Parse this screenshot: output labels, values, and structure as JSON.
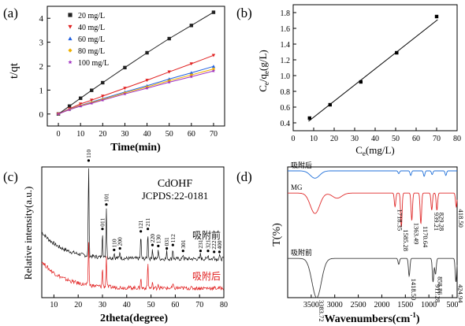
{
  "chart_data": [
    {
      "panel": "(a)",
      "type": "scatter",
      "xlabel": "Time(min)",
      "ylabel": "t/qt",
      "xlim": [
        -5,
        75
      ],
      "ylim": [
        -0.5,
        4.5
      ],
      "xticks": [
        0,
        10,
        20,
        30,
        40,
        50,
        60,
        70
      ],
      "yticks": [
        0,
        1,
        2,
        3,
        4
      ],
      "legend_position": "top-left",
      "grid": false,
      "series": [
        {
          "name": "20 mg/L",
          "color": "#222222",
          "marker": "square",
          "x": [
            0,
            5,
            10,
            15,
            20,
            30,
            40,
            50,
            60,
            70
          ],
          "y": [
            0.0,
            0.33,
            0.66,
            0.99,
            1.31,
            1.94,
            2.56,
            3.15,
            3.7,
            4.25
          ]
        },
        {
          "name": "40 mg/L",
          "color": "#e02020",
          "marker": "triangle-down",
          "x": [
            0,
            5,
            10,
            15,
            20,
            30,
            40,
            50,
            60,
            70
          ],
          "y": [
            0.0,
            0.22,
            0.42,
            0.58,
            0.75,
            1.08,
            1.41,
            1.76,
            2.1,
            2.45
          ]
        },
        {
          "name": "60 mg/L",
          "color": "#2060e0",
          "marker": "triangle-up",
          "x": [
            0,
            5,
            10,
            15,
            20,
            30,
            40,
            50,
            60,
            70
          ],
          "y": [
            0.0,
            0.2,
            0.36,
            0.5,
            0.64,
            0.92,
            1.18,
            1.46,
            1.72,
            1.99
          ]
        },
        {
          "name": "80 mg/L",
          "color": "#f0b000",
          "marker": "diamond",
          "x": [
            0,
            5,
            10,
            15,
            20,
            30,
            40,
            50,
            60,
            70
          ],
          "y": [
            0.0,
            0.19,
            0.35,
            0.48,
            0.61,
            0.88,
            1.13,
            1.39,
            1.63,
            1.88
          ]
        },
        {
          "name": "100 mg/L",
          "color": "#a030c0",
          "marker": "star",
          "x": [
            0,
            5,
            10,
            15,
            20,
            30,
            40,
            50,
            60,
            70
          ],
          "y": [
            0.0,
            0.18,
            0.33,
            0.45,
            0.58,
            0.84,
            1.08,
            1.33,
            1.56,
            1.8
          ]
        }
      ]
    },
    {
      "panel": "(b)",
      "type": "scatter",
      "xlabel_main": "C",
      "xlabel_sub": "e",
      "xlabel_tail": "(mg/L)",
      "ylabel_parts": [
        "C",
        "e",
        "/q",
        "e",
        "(g/L)"
      ],
      "xlim": [
        0,
        80
      ],
      "ylim": [
        0.3,
        1.9
      ],
      "xticks": [
        0,
        10,
        20,
        30,
        40,
        50,
        60,
        70,
        80
      ],
      "yticks": [
        0.4,
        0.6,
        0.8,
        1.0,
        1.2,
        1.4,
        1.6,
        1.8
      ],
      "ytick_labels": [
        "0.4",
        "0.6",
        "0.8",
        "1.0",
        "1.2",
        "1.4",
        "1.6",
        "1.8"
      ],
      "grid": false,
      "series": [
        {
          "marker": "square",
          "color": "#000000",
          "x": [
            8,
            18,
            33,
            50.5,
            70
          ],
          "y": [
            0.46,
            0.63,
            0.92,
            1.29,
            1.75
          ],
          "fit_line": [
            [
              7.5,
              0.42
            ],
            [
              70.5,
              1.71
            ]
          ]
        }
      ]
    },
    {
      "panel": "(c)",
      "type": "line",
      "xlabel": "2theta(degree)",
      "ylabel": "Relative intensity(a.u.)",
      "xlim": [
        5,
        80
      ],
      "xticks": [
        10,
        20,
        30,
        40,
        50,
        60,
        70,
        80
      ],
      "annotation_title": "CdOHF",
      "annotation_ref": "JCPDS:22-0181",
      "reference_peaks": [
        {
          "label": "110",
          "x": 24.3
        },
        {
          "label": "011",
          "x": 30.0
        },
        {
          "label": "101",
          "x": 31.6
        },
        {
          "label": "110",
          "x": 34.8
        },
        {
          "label": "200",
          "x": 37.2
        },
        {
          "label": "121",
          "x": 45.8
        },
        {
          "label": "211",
          "x": 48.7
        },
        {
          "label": "220",
          "x": 50.6
        },
        {
          "label": "130",
          "x": 53.0
        },
        {
          "label": "031",
          "x": 56.5
        },
        {
          "label": "112",
          "x": 59.0
        },
        {
          "label": "301",
          "x": 63.2
        },
        {
          "label": "231",
          "x": 70.4
        },
        {
          "label": "321",
          "x": 73.5
        },
        {
          "label": "222",
          "x": 76.0
        },
        {
          "label": "400",
          "x": 78.2
        }
      ],
      "series": [
        {
          "name": "吸附前",
          "color": "#111111",
          "baseline": 0.6,
          "peaks": [
            [
              24.3,
              1.95
            ],
            [
              30.0,
              0.55
            ],
            [
              31.6,
              1.05
            ],
            [
              34.8,
              0.12
            ],
            [
              37.2,
              0.15
            ],
            [
              45.8,
              0.5
            ],
            [
              48.7,
              0.55
            ],
            [
              50.6,
              0.22
            ],
            [
              53.0,
              0.2
            ],
            [
              56.5,
              0.15
            ],
            [
              59.0,
              0.22
            ],
            [
              63.2,
              0.1
            ],
            [
              70.4,
              0.1
            ],
            [
              73.5,
              0.1
            ],
            [
              76.0,
              0.08
            ],
            [
              78.2,
              0.08
            ]
          ]
        },
        {
          "name": "吸附后",
          "color": "#e01818",
          "baseline": 0.0,
          "peaks": [
            [
              24.3,
              0.95
            ],
            [
              30.0,
              0.4
            ],
            [
              31.6,
              0.62
            ],
            [
              45.8,
              0.22
            ],
            [
              48.7,
              0.55
            ],
            [
              50.6,
              0.1
            ],
            [
              53.0,
              0.1
            ],
            [
              59.0,
              0.08
            ]
          ]
        }
      ]
    },
    {
      "panel": "(d)",
      "type": "line",
      "xlabel": "Wavenumbers(cm",
      "xlabel_sup": "-1",
      "xlabel_tail": ")",
      "ylabel": "T(%)",
      "xlim": [
        4000,
        400
      ],
      "xticks": [
        3500,
        3000,
        2500,
        2000,
        1500,
        1000,
        500
      ],
      "series": [
        {
          "name": "吸附后",
          "color": "#1f6fd8",
          "offset": 0.97,
          "scale": 0.07,
          "bands": [
            [
              3420,
              0.8
            ],
            [
              1640,
              0.3
            ],
            [
              1385,
              0.5
            ],
            [
              1100,
              0.6
            ],
            [
              930,
              0.4
            ],
            [
              640,
              0.5
            ]
          ],
          "labels": []
        },
        {
          "name": "MG",
          "color": "#e02a2a",
          "offset": 0.8,
          "scale": 0.26,
          "bands": [
            [
              3420,
              0.6
            ],
            [
              2950,
              0.15
            ],
            [
              1718.35,
              0.4
            ],
            [
              1585.28,
              1.0
            ],
            [
              1363.49,
              0.8
            ],
            [
              1170.64,
              0.9
            ],
            [
              939.21,
              0.5
            ],
            [
              829.28,
              0.5
            ],
            [
              418.5,
              0.4
            ]
          ],
          "labels": [
            "1718.35",
            "1585.28",
            "1363.49",
            "1170.64",
            "939.21",
            "829.28",
            "418.50"
          ]
        },
        {
          "name": "吸附前",
          "color": "#3a3a3a",
          "offset": 0.3,
          "scale": 0.3,
          "bands": [
            [
              3383.72,
              1.0
            ],
            [
              1640,
              0.15
            ],
            [
              1418.5,
              0.45
            ],
            [
              911.28,
              0.6
            ],
            [
              858.86,
              0.4
            ],
            [
              424.94,
              0.6
            ]
          ],
          "labels": [
            "3383.72",
            "1418.50",
            "911.28",
            "858.86",
            "424.94"
          ]
        }
      ]
    }
  ]
}
